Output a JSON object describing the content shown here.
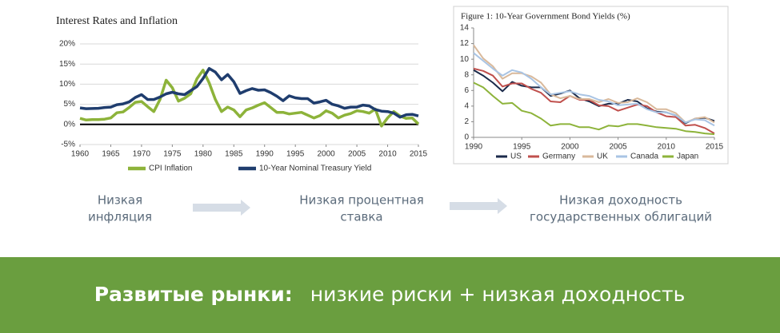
{
  "chart_data": [
    {
      "type": "line",
      "title": "Interest Rates and Inflation",
      "x": [
        1960,
        1961,
        1962,
        1963,
        1964,
        1965,
        1966,
        1967,
        1968,
        1969,
        1970,
        1971,
        1972,
        1973,
        1974,
        1975,
        1976,
        1977,
        1978,
        1979,
        1980,
        1981,
        1982,
        1983,
        1984,
        1985,
        1986,
        1987,
        1988,
        1989,
        1990,
        1991,
        1992,
        1993,
        1994,
        1995,
        1996,
        1997,
        1998,
        1999,
        2000,
        2001,
        2002,
        2003,
        2004,
        2005,
        2006,
        2007,
        2008,
        2009,
        2010,
        2011,
        2012,
        2013,
        2014,
        2015
      ],
      "series": [
        {
          "name": "CPI Inflation",
          "color": "#8db33a",
          "values": [
            1.5,
            1.1,
            1.2,
            1.2,
            1.3,
            1.6,
            2.9,
            3.1,
            4.2,
            5.5,
            5.7,
            4.4,
            3.2,
            6.2,
            11.0,
            9.1,
            5.8,
            6.5,
            7.6,
            11.3,
            13.5,
            10.3,
            6.2,
            3.2,
            4.3,
            3.6,
            1.9,
            3.6,
            4.1,
            4.8,
            5.4,
            4.2,
            3.0,
            3.0,
            2.6,
            2.8,
            3.0,
            2.3,
            1.6,
            2.2,
            3.4,
            2.8,
            1.6,
            2.3,
            2.7,
            3.4,
            3.2,
            2.8,
            3.8,
            -0.4,
            1.6,
            3.2,
            2.1,
            1.5,
            1.6,
            0.1
          ]
        },
        {
          "name": "10-Year Nominal Treasury Yield",
          "color": "#1f3d6e",
          "values": [
            4.1,
            3.9,
            3.95,
            4.0,
            4.2,
            4.3,
            4.9,
            5.1,
            5.6,
            6.7,
            7.4,
            6.2,
            6.2,
            6.8,
            7.6,
            8.0,
            7.6,
            7.4,
            8.4,
            9.4,
            11.4,
            13.9,
            13.0,
            11.1,
            12.4,
            10.6,
            7.7,
            8.4,
            8.9,
            8.5,
            8.6,
            7.9,
            7.0,
            5.9,
            7.1,
            6.6,
            6.4,
            6.4,
            5.3,
            5.6,
            6.0,
            5.0,
            4.6,
            4.0,
            4.3,
            4.3,
            4.8,
            4.6,
            3.7,
            3.3,
            3.2,
            2.8,
            1.8,
            2.4,
            2.5,
            2.1
          ]
        }
      ],
      "xlim": [
        1960,
        2015
      ],
      "xticks": [
        1960,
        1965,
        1970,
        1975,
        1980,
        1985,
        1990,
        1995,
        2000,
        2005,
        2010,
        2015
      ],
      "ylim": [
        -5,
        20
      ],
      "yticks": [
        {
          "value": -5,
          "label": "-5%"
        },
        {
          "value": 0,
          "label": "0%"
        },
        {
          "value": 5,
          "label": "5%"
        },
        {
          "value": 10,
          "label": "10%"
        },
        {
          "value": 15,
          "label": "15%"
        },
        {
          "value": 20,
          "label": "20%"
        }
      ],
      "grid": true,
      "legend": "bottom"
    },
    {
      "type": "line",
      "title": "Figure 1: 10-Year Government Bond Yields (%)",
      "x": [
        1990,
        1991,
        1992,
        1993,
        1994,
        1995,
        1996,
        1997,
        1998,
        1999,
        2000,
        2001,
        2002,
        2003,
        2004,
        2005,
        2006,
        2007,
        2008,
        2009,
        2010,
        2011,
        2012,
        2013,
        2014,
        2015
      ],
      "series": [
        {
          "name": "US",
          "color": "#1b2a4a",
          "values": [
            8.6,
            7.9,
            7.0,
            5.9,
            7.1,
            6.6,
            6.4,
            6.4,
            5.3,
            5.6,
            6.0,
            5.0,
            4.6,
            4.0,
            4.3,
            4.3,
            4.8,
            4.6,
            3.7,
            3.3,
            3.2,
            2.8,
            1.8,
            2.4,
            2.5,
            2.1
          ]
        },
        {
          "name": "Germany",
          "color": "#c0504d",
          "values": [
            8.8,
            8.5,
            7.9,
            6.5,
            6.9,
            6.9,
            6.2,
            5.7,
            4.6,
            4.5,
            5.3,
            4.8,
            4.8,
            4.1,
            4.0,
            3.4,
            3.8,
            4.2,
            4.0,
            3.2,
            2.7,
            2.6,
            1.5,
            1.6,
            1.2,
            0.5
          ]
        },
        {
          "name": "UK",
          "color": "#d9b99b",
          "values": [
            11.8,
            10.1,
            9.1,
            7.5,
            8.2,
            8.2,
            7.8,
            7.0,
            5.5,
            5.0,
            5.3,
            4.9,
            4.9,
            4.5,
            4.9,
            4.4,
            4.5,
            5.0,
            4.5,
            3.6,
            3.6,
            3.1,
            1.9,
            2.4,
            2.6,
            1.9
          ]
        },
        {
          "name": "Canada",
          "color": "#a9c4e4",
          "values": [
            10.8,
            9.8,
            8.8,
            7.9,
            8.6,
            8.3,
            7.5,
            6.4,
            5.5,
            5.7,
            5.9,
            5.5,
            5.3,
            4.8,
            4.6,
            4.1,
            4.2,
            4.3,
            3.6,
            3.2,
            3.2,
            2.8,
            1.9,
            2.3,
            2.2,
            1.5
          ]
        },
        {
          "name": "Japan",
          "color": "#8db33a",
          "values": [
            7.0,
            6.4,
            5.3,
            4.3,
            4.4,
            3.4,
            3.1,
            2.4,
            1.5,
            1.7,
            1.7,
            1.3,
            1.3,
            1.0,
            1.5,
            1.4,
            1.7,
            1.7,
            1.5,
            1.3,
            1.2,
            1.1,
            0.8,
            0.7,
            0.5,
            0.4
          ]
        }
      ],
      "xlim": [
        1990,
        2015
      ],
      "xticks": [
        1990,
        1995,
        2000,
        2005,
        2010,
        2015
      ],
      "ylim": [
        0,
        14
      ],
      "yticks": [
        0,
        2,
        4,
        6,
        8,
        10,
        12,
        14
      ],
      "grid": false,
      "legend": "bottom"
    }
  ],
  "flow": [
    [
      "Низкая",
      "инфляция"
    ],
    [
      "Низкая процентная",
      "ставка"
    ],
    [
      "Низкая доходность",
      "государственных облигаций"
    ]
  ],
  "banner": {
    "bold": "Развитые рынки:",
    "text": "низкие риски + низкая доходность"
  }
}
